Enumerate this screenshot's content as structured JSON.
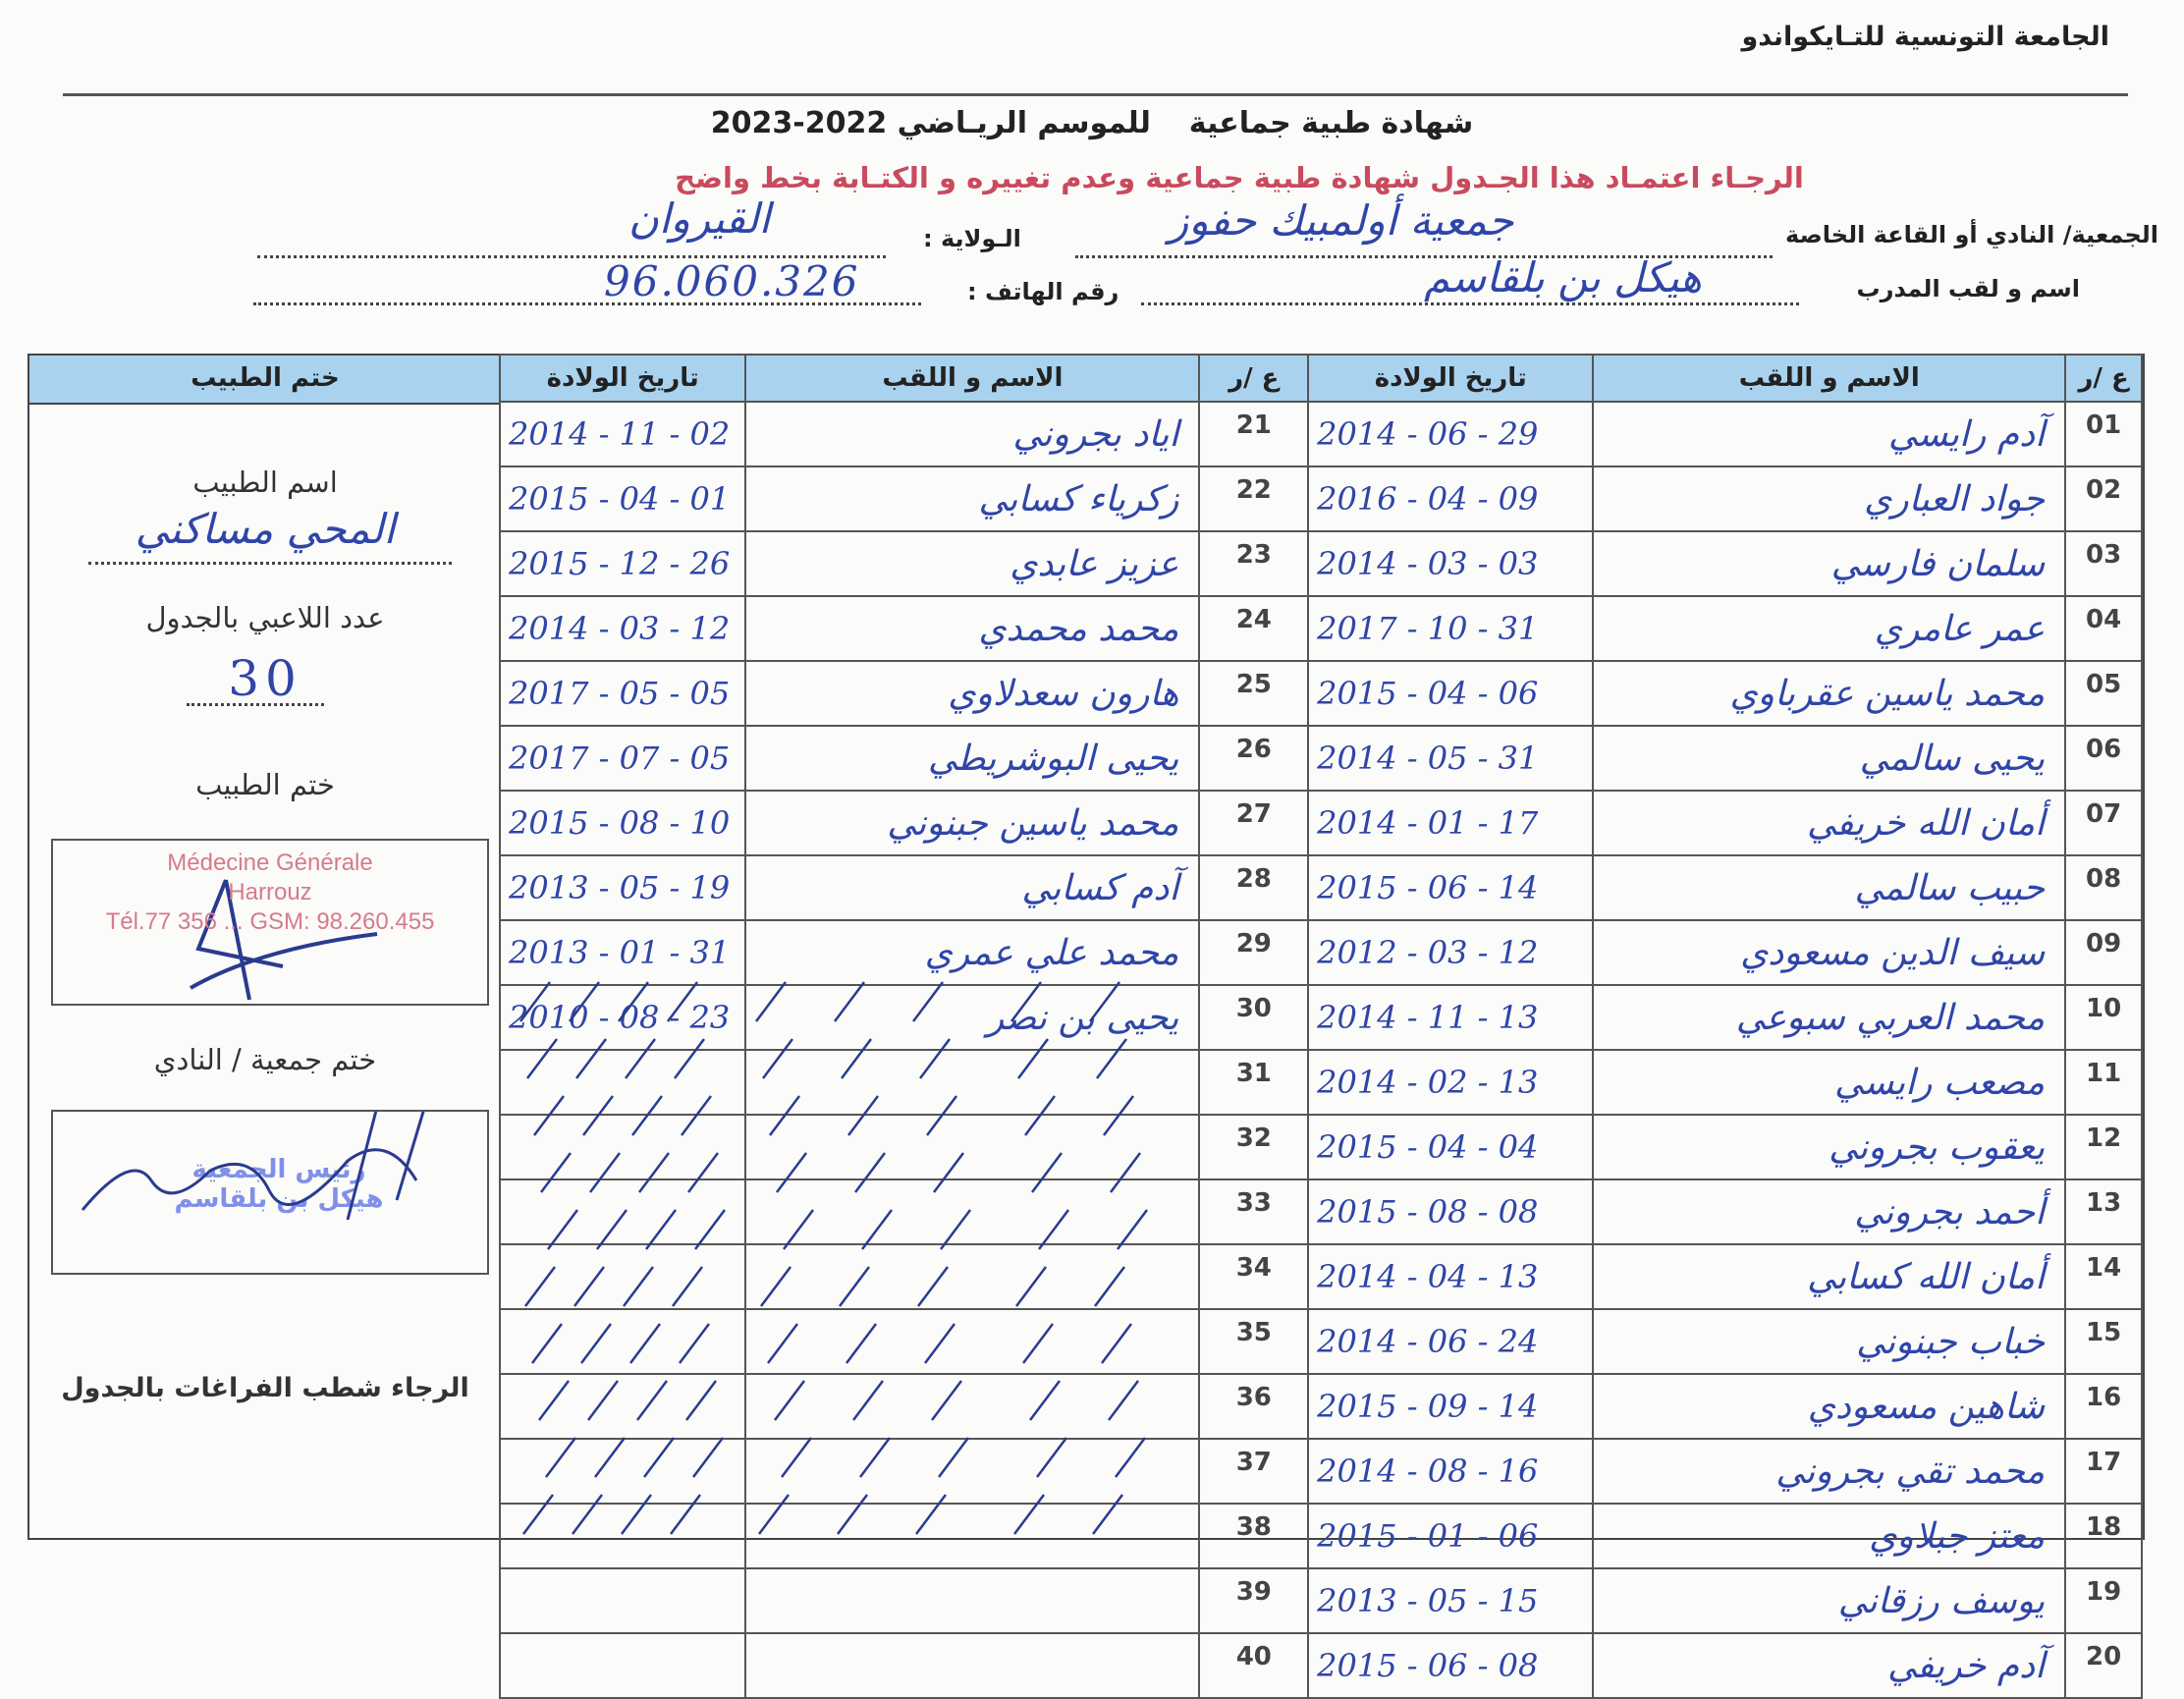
{
  "header": {
    "organization": "الجامعة التونسية للتـايكواندو",
    "title": "شهادة طبية جماعية",
    "season": "للموسم الريـاضي 2022-2023",
    "notice": "الرجـاء اعتمـاد هذا الجـدول  شهادة طبية جماعية وعدم تغييره و الكتـابة بخط واضح"
  },
  "fields": {
    "club_label": "الجمعية/ النادي أو القاعة الخاصة",
    "club_value": "جمعية أولمبيك حفوز",
    "state_label": "الـولاية :",
    "state_value": "القيروان",
    "coach_label": "اسم و لقب المدرب",
    "coach_value": "هيكل بن بلقاسم",
    "phone_label": "رقم الهاتف :",
    "phone_value": "96.060.326"
  },
  "table": {
    "headers": {
      "number": "ع /ر",
      "name": "الاسم و اللقب",
      "birthdate": "تاريخ الولادة",
      "doctor_stamp": "ختم الطبيب"
    },
    "left_block": [
      {
        "n": "01",
        "name": "آدم رايسي",
        "date": "2014 - 06 - 29"
      },
      {
        "n": "02",
        "name": "جواد العباري",
        "date": "2016 - 04 - 09"
      },
      {
        "n": "03",
        "name": "سلمان فارسي",
        "date": "2014 - 03 - 03"
      },
      {
        "n": "04",
        "name": "عمر عامري",
        "date": "2017 - 10 - 31"
      },
      {
        "n": "05",
        "name": "محمد ياسين عقرباوي",
        "date": "2015 - 04 - 06"
      },
      {
        "n": "06",
        "name": "يحيى سالمي",
        "date": "2014 - 05 - 31"
      },
      {
        "n": "07",
        "name": "أمان الله خريفي",
        "date": "2014 - 01 - 17"
      },
      {
        "n": "08",
        "name": "حبيب سالمي",
        "date": "2015 - 06 - 14"
      },
      {
        "n": "09",
        "name": "سيف الدين مسعودي",
        "date": "2012 - 03 - 12"
      },
      {
        "n": "10",
        "name": "محمد العربي سبوعي",
        "date": "2014 - 11 - 13"
      },
      {
        "n": "11",
        "name": "مصعب رايسي",
        "date": "2014 - 02 - 13"
      },
      {
        "n": "12",
        "name": "يعقوب بجروني",
        "date": "2015 - 04 - 04"
      },
      {
        "n": "13",
        "name": "أحمد بجروني",
        "date": "2015 - 08 - 08"
      },
      {
        "n": "14",
        "name": "أمان الله كسابي",
        "date": "2014 - 04 - 13"
      },
      {
        "n": "15",
        "name": "خباب جبنوني",
        "date": "2014 - 06 - 24"
      },
      {
        "n": "16",
        "name": "شاهين مسعودي",
        "date": "2015 - 09 - 14"
      },
      {
        "n": "17",
        "name": "محمد تقي بجروني",
        "date": "2014 - 08 - 16"
      },
      {
        "n": "18",
        "name": "معتز جبلاوي",
        "date": "2015 - 01 - 06"
      },
      {
        "n": "19",
        "name": "يوسف رزقاني",
        "date": "2013 - 05 - 15"
      },
      {
        "n": "20",
        "name": "آدم خريفي",
        "date": "2015 - 06 - 08"
      }
    ],
    "right_block": [
      {
        "n": "21",
        "name": "اياد بجروني",
        "date": "2014 - 11 - 02"
      },
      {
        "n": "22",
        "name": "زكرياء كسابي",
        "date": "2015 - 04 - 01"
      },
      {
        "n": "23",
        "name": "عزيز عابدي",
        "date": "2015 - 12 - 26"
      },
      {
        "n": "24",
        "name": "محمد محمدي",
        "date": "2014 - 03 - 12"
      },
      {
        "n": "25",
        "name": "هارون سعدلاوي",
        "date": "2017 - 05 - 05"
      },
      {
        "n": "26",
        "name": "يحيى البوشريطي",
        "date": "2017 - 07 - 05"
      },
      {
        "n": "27",
        "name": "محمد ياسين جبنوني",
        "date": "2015 - 08 - 10"
      },
      {
        "n": "28",
        "name": "آدم كسابي",
        "date": "2013 - 05 - 19"
      },
      {
        "n": "29",
        "name": "محمد علي عمري",
        "date": "2013 - 01 - 31"
      },
      {
        "n": "30",
        "name": "يحيى بن نصر",
        "date": "2010 - 08 - 23"
      },
      {
        "n": "31",
        "name": "",
        "date": ""
      },
      {
        "n": "32",
        "name": "",
        "date": ""
      },
      {
        "n": "33",
        "name": "",
        "date": ""
      },
      {
        "n": "34",
        "name": "",
        "date": ""
      },
      {
        "n": "35",
        "name": "",
        "date": ""
      },
      {
        "n": "36",
        "name": "",
        "date": ""
      },
      {
        "n": "37",
        "name": "",
        "date": ""
      },
      {
        "n": "38",
        "name": "",
        "date": ""
      },
      {
        "n": "39",
        "name": "",
        "date": ""
      },
      {
        "n": "40",
        "name": "",
        "date": ""
      }
    ]
  },
  "doctor_panel": {
    "doctor_name_label": "اسم الطبيب",
    "doctor_name_value": "المحي مساكني",
    "player_count_label": "عدد اللاعبي بالجدول",
    "player_count_value": "30",
    "doctor_stamp_label": "ختم الطبيب",
    "doctor_stamp_lines": [
      "Médecine Générale",
      "Harrouz",
      "Tél.77 356 ... GSM: 98.260.455"
    ],
    "club_stamp_label": "ختم جمعية / النادي",
    "club_stamp_lines": [
      "رئيس الجمعية",
      "هيكل بن بلقاسم"
    ],
    "strike_note": "الرجاء شطب  الفراغات بالجدول"
  },
  "colors": {
    "header_fill": "#a9d2ee",
    "notice_red": "#c94a5e",
    "ink_blue": "#2f45a8"
  }
}
